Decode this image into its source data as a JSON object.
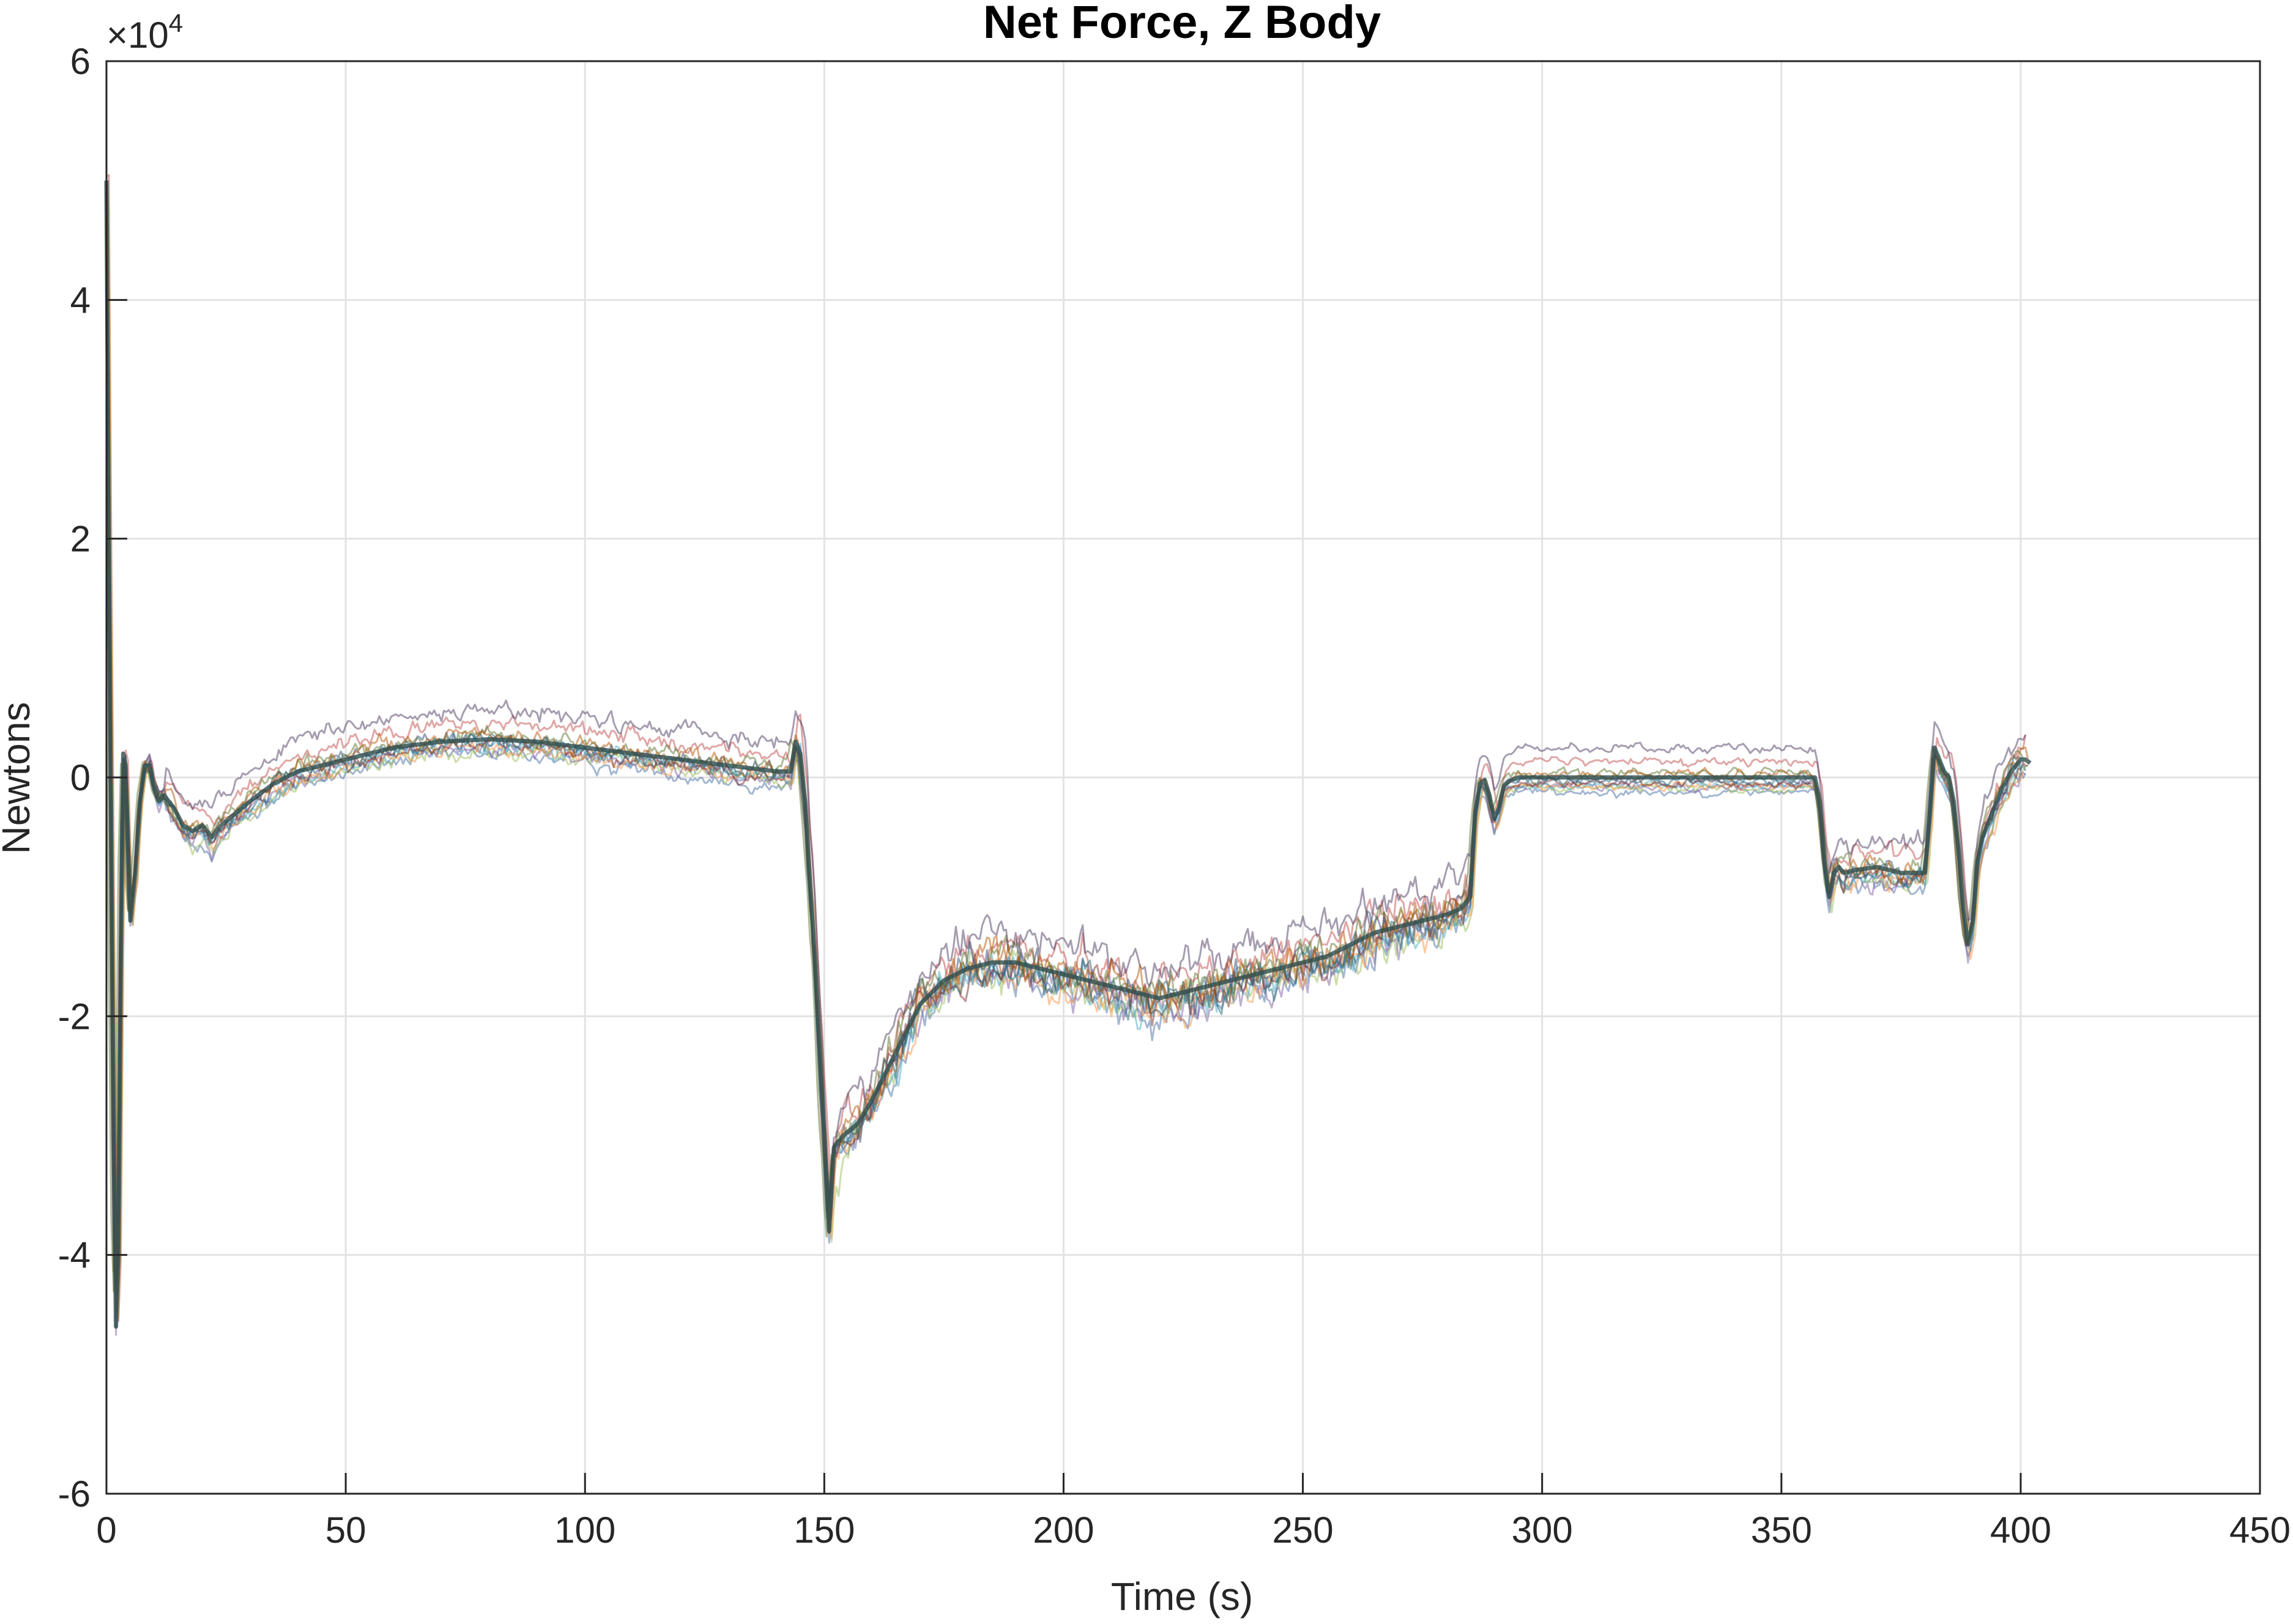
{
  "chart_data": {
    "type": "line",
    "title": "Net Force, Z Body",
    "xlabel": "Time (s)",
    "ylabel": "Newtons",
    "xlim": [
      0,
      450
    ],
    "ylim": [
      -60000,
      60000
    ],
    "x_ticks": [
      0,
      50,
      100,
      150,
      200,
      250,
      300,
      350,
      400,
      450
    ],
    "x_tick_labels": [
      "0",
      "50",
      "100",
      "150",
      "200",
      "250",
      "300",
      "350",
      "400",
      "450"
    ],
    "y_ticks": [
      -60000,
      -40000,
      -20000,
      0,
      20000,
      40000,
      60000
    ],
    "y_tick_labels": [
      "-6",
      "-4",
      "-2",
      "0",
      "2",
      "4",
      "6"
    ],
    "y_exponent_label": "×10",
    "y_exponent_power": "4",
    "grid": true,
    "legend": "none",
    "series_count": 12,
    "series_colors": [
      "#4a6fa5",
      "#c0504d",
      "#9bbb59",
      "#8064a2",
      "#4bacc6",
      "#f79646",
      "#2c4d75",
      "#772c2a",
      "#5f7530",
      "#4d3b62",
      "#276a7c",
      "#b65708"
    ],
    "nominal_series": {
      "x": [
        0,
        0.5,
        1,
        1.5,
        2,
        2.5,
        3,
        3.5,
        4,
        5,
        6,
        7,
        8,
        9,
        10,
        11,
        12,
        14,
        16,
        18,
        20,
        22,
        24,
        27,
        30,
        35,
        40,
        50,
        60,
        70,
        80,
        90,
        100,
        110,
        120,
        130,
        140,
        143,
        144,
        145,
        146,
        148,
        150,
        151,
        152,
        154,
        157,
        160,
        165,
        170,
        175,
        180,
        185,
        190,
        195,
        200,
        205,
        210,
        215,
        220,
        225,
        230,
        235,
        240,
        245,
        250,
        255,
        260,
        265,
        270,
        275,
        280,
        283,
        285,
        286,
        287,
        288,
        289,
        290,
        291,
        292,
        293,
        295,
        300,
        310,
        320,
        330,
        340,
        350,
        357,
        358,
        359,
        360,
        361,
        362,
        363,
        365,
        370,
        375,
        380,
        381,
        382,
        383,
        384,
        385,
        386,
        387,
        388,
        389,
        390,
        391,
        392,
        394,
        396,
        398,
        400,
        401,
        402
      ],
      "y": [
        50000,
        20000,
        -5000,
        -30000,
        -46000,
        -40000,
        -15000,
        2000,
        1000,
        -12000,
        -8000,
        -2000,
        1000,
        1000,
        -1000,
        -2000,
        -1500,
        -2500,
        -4000,
        -4500,
        -4000,
        -5000,
        -4000,
        -3000,
        -2000,
        -500,
        500,
        1500,
        2500,
        3000,
        3200,
        3000,
        2500,
        2000,
        1500,
        1000,
        500,
        500,
        3000,
        2000,
        -2000,
        -15000,
        -30000,
        -38000,
        -31000,
        -30000,
        -29000,
        -27000,
        -23000,
        -19000,
        -17000,
        -16000,
        -15500,
        -15500,
        -16000,
        -16500,
        -17000,
        -17500,
        -18000,
        -18500,
        -18000,
        -17500,
        -17000,
        -16500,
        -16000,
        -15500,
        -15000,
        -14000,
        -13000,
        -12500,
        -12000,
        -11500,
        -11000,
        -10000,
        -3000,
        -500,
        -200,
        -1500,
        -3500,
        -2500,
        -700,
        -300,
        0,
        0,
        0,
        0,
        0,
        0,
        0,
        0,
        -2000,
        -7000,
        -10000,
        -8000,
        -7500,
        -8000,
        -7800,
        -7500,
        -8000,
        -8000,
        -3000,
        2500,
        1500,
        500,
        0,
        -2000,
        -6000,
        -11000,
        -14000,
        -12000,
        -7000,
        -5000,
        -3000,
        -1000,
        500,
        1500,
        1500,
        1200
      ]
    }
  }
}
